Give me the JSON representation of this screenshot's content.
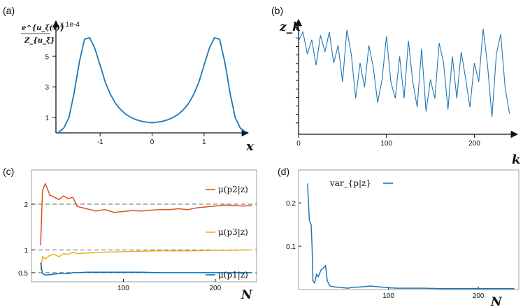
{
  "chart_data": [
    {
      "id": "a",
      "panel_label": "(a)",
      "type": "line",
      "ylabel_num": "e^{u_ξ(x)}",
      "ylabel_den": "Z_{u_ξ}",
      "scale_note": "x 1e-4",
      "xlabel": "x",
      "xticks": [
        "-1",
        "0",
        "1"
      ],
      "yticks": [
        "1",
        "3",
        "5"
      ],
      "xlim": [
        -1.85,
        1.85
      ],
      "ylim": [
        0,
        7.2
      ],
      "color": "#1f77b4",
      "series": [
        {
          "x": [
            -1.8,
            -1.7,
            -1.6,
            -1.5,
            -1.4,
            -1.3,
            -1.2,
            -1.1,
            -1.0,
            -0.9,
            -0.8,
            -0.7,
            -0.6,
            -0.5,
            -0.4,
            -0.3,
            -0.2,
            -0.1,
            0.0,
            0.1,
            0.2,
            0.3,
            0.4,
            0.5,
            0.6,
            0.7,
            0.8,
            0.9,
            1.0,
            1.1,
            1.2,
            1.3,
            1.4,
            1.5,
            1.6,
            1.7,
            1.8
          ],
          "values": [
            0.05,
            0.3,
            1.0,
            2.6,
            4.6,
            6.1,
            6.2,
            5.5,
            4.4,
            3.3,
            2.5,
            1.9,
            1.5,
            1.2,
            1.0,
            0.85,
            0.75,
            0.7,
            0.65,
            0.7,
            0.75,
            0.85,
            1.0,
            1.2,
            1.5,
            1.9,
            2.5,
            3.3,
            4.4,
            5.5,
            6.2,
            6.1,
            4.6,
            2.6,
            1.0,
            0.3,
            0.05
          ]
        }
      ]
    },
    {
      "id": "b",
      "panel_label": "(b)",
      "type": "line",
      "ylabel": "z_k",
      "xlabel": "k",
      "xticks": [
        "0",
        "100",
        "200"
      ],
      "xlim": [
        0,
        245
      ],
      "ylim": [
        0,
        1
      ],
      "color": "#1f77b4",
      "series": [
        {
          "x": [
            0,
            5,
            10,
            15,
            20,
            25,
            30,
            35,
            40,
            45,
            50,
            55,
            60,
            65,
            70,
            75,
            80,
            85,
            90,
            95,
            100,
            105,
            110,
            115,
            120,
            125,
            130,
            135,
            140,
            145,
            150,
            155,
            160,
            165,
            170,
            175,
            180,
            185,
            190,
            195,
            200,
            205,
            210,
            215,
            220,
            225,
            230,
            235,
            240
          ],
          "values": [
            0.82,
            0.9,
            0.7,
            0.83,
            0.6,
            0.87,
            0.72,
            0.9,
            0.62,
            0.78,
            0.45,
            0.92,
            0.7,
            0.3,
            0.62,
            0.4,
            0.78,
            0.58,
            0.26,
            0.47,
            0.86,
            0.45,
            0.3,
            0.68,
            0.3,
            0.82,
            0.45,
            0.22,
            0.75,
            0.18,
            0.47,
            0.3,
            0.8,
            0.62,
            0.2,
            0.68,
            0.3,
            0.72,
            0.48,
            0.22,
            0.62,
            0.45,
            0.93,
            0.6,
            0.13,
            0.7,
            0.88,
            0.4,
            0.16
          ]
        }
      ]
    },
    {
      "id": "c",
      "panel_label": "(c)",
      "type": "line",
      "xlabel": "N",
      "xticks": [
        "100",
        "200"
      ],
      "yticks": [
        "0.5",
        "1",
        "2"
      ],
      "xlim": [
        0,
        245
      ],
      "ylim": [
        0.3,
        2.75
      ],
      "reference_lines": [
        0.5,
        1,
        2
      ],
      "series": [
        {
          "name": "μ(p2|z)",
          "color": "#d95319",
          "x": [
            10,
            12,
            15,
            18,
            20,
            25,
            30,
            35,
            40,
            45,
            50,
            60,
            70,
            80,
            90,
            100,
            110,
            120,
            130,
            140,
            150,
            160,
            170,
            180,
            190,
            200,
            210,
            220,
            230,
            240
          ],
          "values": [
            1.1,
            2.3,
            2.45,
            2.3,
            2.2,
            2.15,
            2.1,
            2.18,
            2.12,
            2.15,
            1.95,
            1.9,
            1.85,
            1.88,
            1.82,
            1.84,
            1.86,
            1.85,
            1.87,
            1.88,
            1.88,
            1.9,
            1.88,
            1.92,
            1.94,
            1.96,
            1.98,
            1.97,
            1.96,
            1.97
          ]
        },
        {
          "name": "μ(p3|z)",
          "color": "#edb120",
          "x": [
            10,
            12,
            15,
            20,
            25,
            30,
            35,
            40,
            45,
            50,
            60,
            80,
            100,
            120,
            140,
            160,
            180,
            200,
            220,
            240
          ],
          "values": [
            0.55,
            0.85,
            0.8,
            0.88,
            0.9,
            0.85,
            0.92,
            0.9,
            0.95,
            0.92,
            0.93,
            0.95,
            0.96,
            0.97,
            0.98,
            0.98,
            0.98,
            0.99,
            0.99,
            1.0
          ]
        },
        {
          "name": "μ(p1|z)",
          "color": "#0072bd",
          "x": [
            10,
            12,
            15,
            20,
            25,
            30,
            35,
            40,
            45,
            50,
            60,
            80,
            100,
            120,
            140,
            160,
            180,
            200,
            220,
            240
          ],
          "values": [
            0.72,
            0.48,
            0.45,
            0.46,
            0.47,
            0.48,
            0.49,
            0.48,
            0.5,
            0.5,
            0.51,
            0.51,
            0.51,
            0.51,
            0.5,
            0.5,
            0.5,
            0.5,
            0.5,
            0.5
          ]
        }
      ]
    },
    {
      "id": "d",
      "panel_label": "(d)",
      "type": "line",
      "xlabel": "N",
      "xticks": [
        "100",
        "200"
      ],
      "yticks": [
        "0.1",
        "0.2"
      ],
      "xlim": [
        0,
        245
      ],
      "ylim": [
        0,
        0.26
      ],
      "series": [
        {
          "name": "var_{p|z}",
          "color": "#1f77b4",
          "x": [
            10,
            12,
            14,
            15,
            16,
            18,
            20,
            22,
            25,
            28,
            30,
            32,
            35,
            40,
            45,
            50,
            55,
            60,
            70,
            80,
            90,
            100,
            110,
            120,
            140,
            160,
            180,
            200,
            220,
            240
          ],
          "values": [
            0.245,
            0.16,
            0.15,
            0.1,
            0.02,
            0.015,
            0.035,
            0.03,
            0.045,
            0.05,
            0.055,
            0.02,
            0.008,
            0.006,
            0.005,
            0.004,
            0.003,
            0.005,
            0.006,
            0.008,
            0.006,
            0.004,
            0.003,
            0.003,
            0.003,
            0.002,
            0.002,
            0.002,
            0.002,
            0.002
          ]
        }
      ]
    }
  ]
}
